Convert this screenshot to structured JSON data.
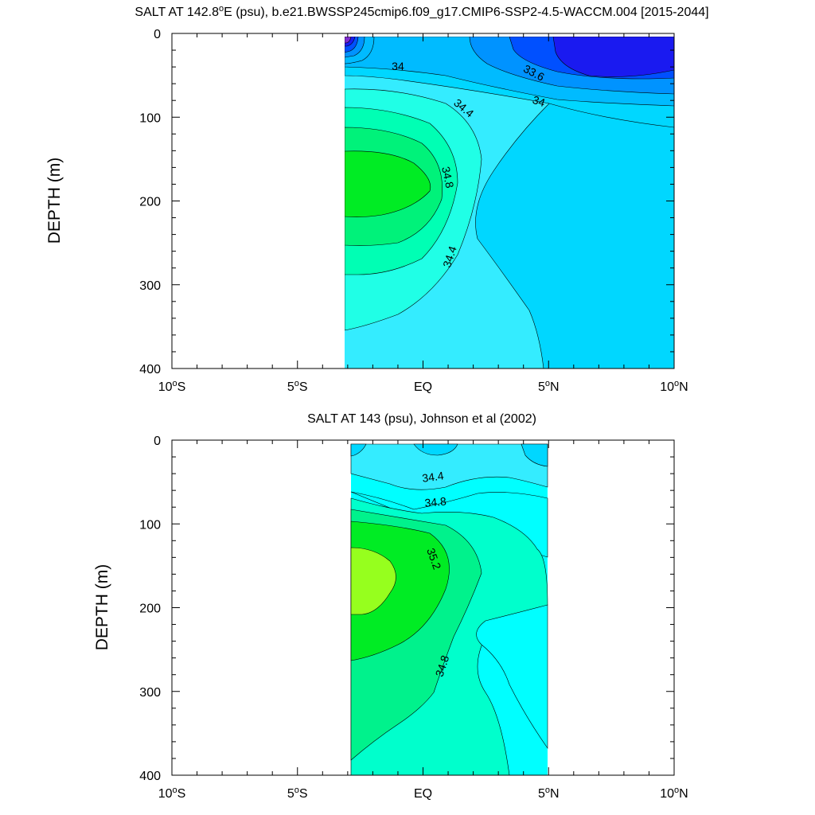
{
  "chart_data": [
    {
      "type": "contour",
      "title": "SALT AT 142.8°E (psu), b.e21.BWSSP245cmip6.f09_g17.CMIP6-SSP2-4.5-WACCM.004 [2015-2044]",
      "title_parts": {
        "prefix": "SALT AT 142.8",
        "sup": "o",
        "suffix": "E (psu), b.e21.BWSSP245cmip6.f09_g17.CMIP6-SSP2-4.5-WACCM.004 [2015-2044]"
      },
      "ylabel": "DEPTH (m)",
      "xlim": [
        -10,
        10
      ],
      "ylim": [
        400,
        0
      ],
      "x_ticks": [
        {
          "value": -10,
          "num": "10",
          "sup": "o",
          "hemi": "S"
        },
        {
          "value": -5,
          "num": "5",
          "sup": "o",
          "hemi": "S"
        },
        {
          "value": 0,
          "num": "EQ",
          "sup": "",
          "hemi": ""
        },
        {
          "value": 5,
          "num": "5",
          "sup": "o",
          "hemi": "N"
        },
        {
          "value": 10,
          "num": "10",
          "sup": "o",
          "hemi": "N"
        }
      ],
      "y_ticks": [
        "0",
        "100",
        "200",
        "300",
        "400"
      ],
      "data_extent": {
        "lat": [
          -3,
          10
        ],
        "depth": [
          5,
          400
        ]
      },
      "contour_labels": [
        {
          "text": "34",
          "lat": -1.0,
          "depth": 40,
          "angle": 0
        },
        {
          "text": "33.6",
          "lat": 4.4,
          "depth": 48,
          "angle": 28
        },
        {
          "text": "34",
          "lat": 4.6,
          "depth": 82,
          "angle": 18
        },
        {
          "text": "34.4",
          "lat": 1.6,
          "depth": 90,
          "angle": 40
        },
        {
          "text": "34.8",
          "lat": 0.95,
          "depth": 172,
          "angle": 78
        },
        {
          "text": "34.4",
          "lat": 1.1,
          "depth": 267,
          "angle": -72
        }
      ],
      "colors": {
        "s_33_2": "#7f2cd0",
        "s_33_4": "#1a1af0",
        "s_33_6": "#0050ff",
        "s_33_8": "#0093ff",
        "s_34_0": "#00bbff",
        "s_34_2": "#00d7ff",
        "s_34_4": "#34ecff",
        "s_34_6": "#20ffe6",
        "s_34_8": "#00ffb4",
        "s_35_0": "#00f27a",
        "s_35_2": "#00ec24"
      }
    },
    {
      "type": "contour",
      "title": "SALT AT 143 (psu), Johnson et al (2002)",
      "ylabel": "DEPTH (m)",
      "xlim": [
        -10,
        10
      ],
      "ylim": [
        400,
        0
      ],
      "x_ticks": [
        {
          "value": -10,
          "num": "10",
          "sup": "o",
          "hemi": "S"
        },
        {
          "value": -5,
          "num": "5",
          "sup": "o",
          "hemi": "S"
        },
        {
          "value": 0,
          "num": "EQ",
          "sup": "",
          "hemi": ""
        },
        {
          "value": 5,
          "num": "5",
          "sup": "o",
          "hemi": "N"
        },
        {
          "value": 10,
          "num": "10",
          "sup": "o",
          "hemi": "N"
        }
      ],
      "y_ticks": [
        "0",
        "100",
        "200",
        "300",
        "400"
      ],
      "data_extent": {
        "lat": [
          -2.75,
          5
        ],
        "depth": [
          5,
          400
        ]
      },
      "contour_labels": [
        {
          "text": "34.4",
          "lat": 0.4,
          "depth": 45,
          "angle": -8
        },
        {
          "text": "34.8",
          "lat": 0.5,
          "depth": 75,
          "angle": -5
        },
        {
          "text": "35.2",
          "lat": 0.4,
          "depth": 142,
          "angle": 70
        },
        {
          "text": "34.8",
          "lat": 0.8,
          "depth": 270,
          "angle": -72
        }
      ],
      "colors": {
        "s_34_2": "#00d7ff",
        "s_34_4": "#34ecff",
        "s_34_6": "#00ffff",
        "s_34_8": "#00ffcc",
        "s_35_0": "#00f28c",
        "s_35_2": "#00ec24",
        "s_35_4": "#96ff1e"
      }
    }
  ]
}
